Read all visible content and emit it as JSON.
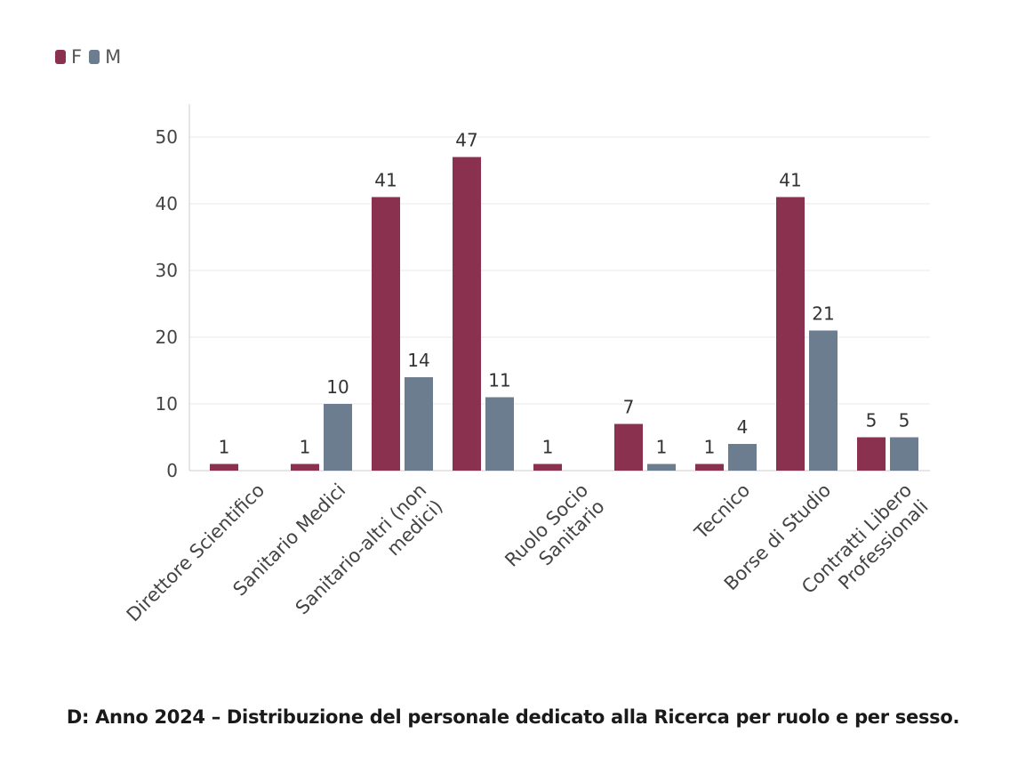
{
  "colors": {
    "F": "#8a3150",
    "M": "#6b7d8f",
    "grid": "#e8e8e8",
    "axis": "#cccccc"
  },
  "legend": [
    {
      "key": "F",
      "label": "F"
    },
    {
      "key": "M",
      "label": "M"
    }
  ],
  "caption": "D: Anno 2024 – Distribuzione del personale dedicato alla Ricerca per ruolo e per sesso.",
  "chart_data": {
    "type": "bar",
    "categories": [
      "Direttore Scientifico",
      "Sanitario Medici",
      "Sanitario-altri (non medici)",
      "",
      "Ruolo Socio Sanitario",
      "",
      "Tecnico",
      "Borse di Studio",
      "Contratti Libero Professionali"
    ],
    "category_lines": [
      [
        "Direttore Scientifico"
      ],
      [
        "Sanitario Medici"
      ],
      [
        "Sanitario-altri (non",
        "medici)"
      ],
      [],
      [
        "Ruolo Socio",
        "Sanitario"
      ],
      [],
      [
        "Tecnico"
      ],
      [
        "Borse di Studio"
      ],
      [
        "Contratti Libero",
        "Professionali"
      ]
    ],
    "series": [
      {
        "name": "F",
        "values": [
          1,
          1,
          41,
          47,
          1,
          7,
          1,
          41,
          5
        ]
      },
      {
        "name": "M",
        "values": [
          null,
          10,
          14,
          11,
          null,
          1,
          4,
          21,
          5
        ]
      }
    ],
    "ylim": [
      0,
      55
    ],
    "yticks": [
      0,
      10,
      20,
      30,
      40,
      50
    ],
    "grid": true,
    "legend_position": "top-left"
  }
}
